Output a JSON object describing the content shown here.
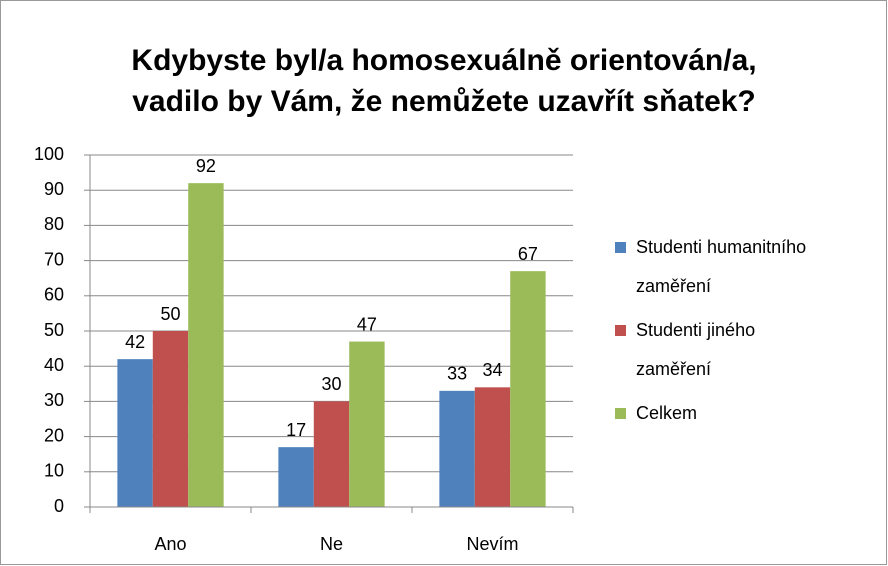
{
  "chart_data": {
    "type": "bar",
    "title": [
      "Kdybyste byl/a homosexuálně orientován/a,",
      "vadilo by Vám, že nemůžete uzavřít sňatek?"
    ],
    "categories": [
      "Ano",
      "Ne",
      "Nevím"
    ],
    "series": [
      {
        "name": "Studenti humanitního zaměření",
        "color": "#4f81bd",
        "values": [
          42,
          17,
          33
        ]
      },
      {
        "name": "Studenti jiného zaměření",
        "color": "#c0504d",
        "values": [
          50,
          30,
          34
        ]
      },
      {
        "name": "Celkem",
        "color": "#9bbb59",
        "values": [
          92,
          47,
          67
        ]
      }
    ],
    "ylim": [
      0,
      100
    ],
    "yticks": [
      0,
      10,
      20,
      30,
      40,
      50,
      60,
      70,
      80,
      90,
      100
    ],
    "grid": true,
    "legend": "right"
  }
}
